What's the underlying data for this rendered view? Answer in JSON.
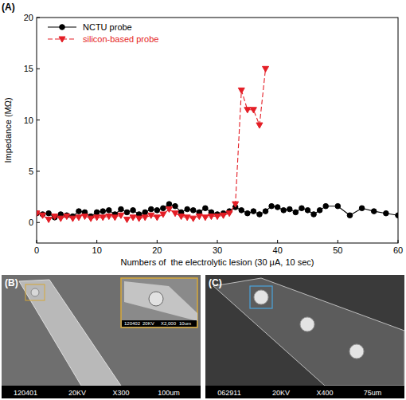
{
  "chart_data": {
    "type": "line",
    "title": "(A)",
    "x_label": "Numbers of  the electrolytic lesion (30 μA, 10 sec)",
    "y_label": "Impedance (MΩ)",
    "xlim": [
      0,
      60
    ],
    "xticks": [
      0,
      10,
      20,
      30,
      40,
      50,
      60
    ],
    "ylim": [
      -2,
      20
    ],
    "yticks": [
      0,
      5,
      10,
      15,
      20
    ],
    "grid": false,
    "legend": "upper left",
    "series": [
      {
        "name": "NCTU probe",
        "color": "#000000",
        "marker": "circle",
        "line_style": "solid",
        "x": [
          0,
          1,
          2,
          3,
          4,
          5,
          6,
          7,
          8,
          9,
          10,
          11,
          12,
          13,
          14,
          15,
          16,
          17,
          18,
          19,
          20,
          21,
          22,
          23,
          24,
          25,
          26,
          27,
          28,
          29,
          30,
          31,
          32,
          33,
          34,
          35,
          36,
          37,
          38,
          39,
          40,
          41,
          42,
          43,
          44,
          45,
          46,
          47,
          48,
          50,
          52,
          54,
          56,
          58,
          60
        ],
        "values": [
          0.9,
          0.8,
          0.9,
          0.5,
          0.8,
          0.7,
          0.6,
          1.1,
          1.0,
          0.6,
          1.0,
          1.1,
          1.2,
          0.8,
          1.3,
          1.0,
          1.2,
          0.8,
          1.0,
          1.3,
          1.2,
          1.4,
          1.8,
          1.6,
          1.0,
          1.3,
          1.2,
          1.0,
          1.4,
          1.0,
          0.8,
          0.9,
          1.1,
          1.5,
          1.2,
          0.9,
          1.1,
          0.8,
          1.1,
          1.6,
          1.5,
          1.2,
          1.3,
          1.0,
          1.4,
          1.2,
          0.8,
          1.2,
          1.6,
          1.6,
          0.7,
          1.4,
          1.1,
          0.9,
          0.7
        ]
      },
      {
        "name": "silicon-based probe",
        "color": "#e41e26",
        "marker": "triangle-down",
        "line_style": "dashed",
        "x": [
          0,
          1,
          2,
          3,
          4,
          5,
          6,
          7,
          8,
          9,
          10,
          11,
          12,
          13,
          14,
          15,
          16,
          17,
          18,
          19,
          20,
          21,
          22,
          23,
          24,
          25,
          26,
          27,
          28,
          29,
          30,
          31,
          32,
          33,
          34,
          35,
          36,
          37,
          38
        ],
        "values": [
          0.9,
          0.7,
          0.3,
          0.6,
          0.4,
          0.6,
          0.4,
          0.5,
          0.6,
          0.4,
          0.5,
          0.5,
          0.6,
          0.5,
          0.7,
          0.3,
          0.5,
          0.4,
          0.5,
          0.7,
          0.5,
          0.8,
          1.3,
          0.9,
          0.6,
          0.5,
          0.4,
          0.6,
          0.5,
          0.6,
          0.6,
          0.7,
          0.9,
          1.8,
          12.9,
          11.0,
          11.0,
          9.5,
          15.0
        ]
      }
    ]
  },
  "panels": [
    {
      "label": "(B)",
      "info": [
        "120401",
        "20KV",
        "X300",
        "100um"
      ],
      "inset": [
        "120402",
        "20KV",
        "X2,000",
        "10um"
      ]
    },
    {
      "label": "(C)",
      "info": [
        "062911",
        "20KV",
        "X400",
        "75um"
      ]
    }
  ]
}
